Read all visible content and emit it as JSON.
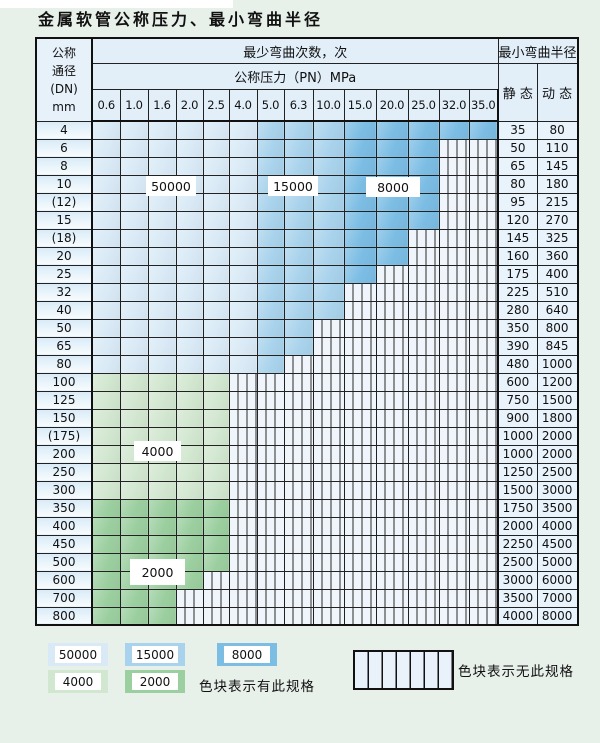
{
  "title": "金属软管公称压力、最小弯曲半径",
  "table": {
    "corner_header": [
      "公称",
      "通径",
      "(DN)",
      "mm"
    ],
    "bend_cycles_header": "最少弯曲次数，次",
    "pressure_header": "公称压力（PN）MPa",
    "radius_header": "最小弯曲半径",
    "static_header": "静 态",
    "dynamic_header": "动 态",
    "pressure_columns": [
      "0.6",
      "1.0",
      "1.6",
      "2.0",
      "2.5",
      "4.0",
      "5.0",
      "6.3",
      "10.0",
      "15.0",
      "20.0",
      "25.0",
      "32.0",
      "35.0"
    ],
    "blue_zones": [
      {
        "value": "50000",
        "cols": [
          "0.6",
          "1.0",
          "1.6",
          "2.0",
          "2.5",
          "4.0"
        ]
      },
      {
        "value": "15000",
        "cols": [
          "5.0",
          "6.3",
          "10.0"
        ]
      },
      {
        "value": "8000",
        "cols": [
          "15.0",
          "20.0",
          "25.0",
          "32.0",
          "35.0"
        ]
      }
    ],
    "rows": [
      {
        "dn": "4",
        "palette": "blue",
        "colored_through": "35.0",
        "static": "35",
        "dynamic": "80"
      },
      {
        "dn": "6",
        "palette": "blue",
        "colored_through": "25.0",
        "static": "50",
        "dynamic": "110"
      },
      {
        "dn": "8",
        "palette": "blue",
        "colored_through": "25.0",
        "static": "65",
        "dynamic": "145"
      },
      {
        "dn": "10",
        "palette": "blue",
        "colored_through": "25.0",
        "static": "80",
        "dynamic": "180"
      },
      {
        "dn": "(12)",
        "palette": "blue",
        "colored_through": "25.0",
        "static": "95",
        "dynamic": "215"
      },
      {
        "dn": "15",
        "palette": "blue",
        "colored_through": "25.0",
        "static": "120",
        "dynamic": "270"
      },
      {
        "dn": "(18)",
        "palette": "blue",
        "colored_through": "20.0",
        "static": "145",
        "dynamic": "325"
      },
      {
        "dn": "20",
        "palette": "blue",
        "colored_through": "20.0",
        "static": "160",
        "dynamic": "360"
      },
      {
        "dn": "25",
        "palette": "blue",
        "colored_through": "15.0",
        "static": "175",
        "dynamic": "400"
      },
      {
        "dn": "32",
        "palette": "blue",
        "colored_through": "10.0",
        "static": "225",
        "dynamic": "510"
      },
      {
        "dn": "40",
        "palette": "blue",
        "colored_through": "10.0",
        "static": "280",
        "dynamic": "640"
      },
      {
        "dn": "50",
        "palette": "blue",
        "colored_through": "6.3",
        "static": "350",
        "dynamic": "800"
      },
      {
        "dn": "65",
        "palette": "blue",
        "colored_through": "6.3",
        "static": "390",
        "dynamic": "845"
      },
      {
        "dn": "80",
        "palette": "blue",
        "colored_through": "5.0",
        "static": "480",
        "dynamic": "1000"
      },
      {
        "dn": "100",
        "palette": "4000",
        "colored_through": "2.5",
        "static": "600",
        "dynamic": "1200"
      },
      {
        "dn": "125",
        "palette": "4000",
        "colored_through": "2.5",
        "static": "750",
        "dynamic": "1500"
      },
      {
        "dn": "150",
        "palette": "4000",
        "colored_through": "2.5",
        "static": "900",
        "dynamic": "1800"
      },
      {
        "dn": "(175)",
        "palette": "4000",
        "colored_through": "2.5",
        "static": "1000",
        "dynamic": "2000"
      },
      {
        "dn": "200",
        "palette": "4000",
        "colored_through": "2.5",
        "static": "1000",
        "dynamic": "2000"
      },
      {
        "dn": "250",
        "palette": "4000",
        "colored_through": "2.5",
        "static": "1250",
        "dynamic": "2500"
      },
      {
        "dn": "300",
        "palette": "4000",
        "colored_through": "2.5",
        "static": "1500",
        "dynamic": "3000"
      },
      {
        "dn": "350",
        "palette": "2000",
        "colored_through": "2.5",
        "static": "1750",
        "dynamic": "3500"
      },
      {
        "dn": "400",
        "palette": "2000",
        "colored_through": "2.5",
        "static": "2000",
        "dynamic": "4000"
      },
      {
        "dn": "450",
        "palette": "2000",
        "colored_through": "2.5",
        "static": "2250",
        "dynamic": "4500"
      },
      {
        "dn": "500",
        "palette": "2000",
        "colored_through": "2.5",
        "static": "2500",
        "dynamic": "5000"
      },
      {
        "dn": "600",
        "palette": "2000",
        "colored_through": "2.0",
        "static": "3000",
        "dynamic": "6000"
      },
      {
        "dn": "700",
        "palette": "2000",
        "colored_through": "1.6",
        "static": "3500",
        "dynamic": "7000"
      },
      {
        "dn": "800",
        "palette": "2000",
        "colored_through": "1.6",
        "static": "4000",
        "dynamic": "8000"
      }
    ]
  },
  "overlay_labels": [
    {
      "text": "50000"
    },
    {
      "text": "15000"
    },
    {
      "text": "8000"
    },
    {
      "text": "4000"
    },
    {
      "text": "2000"
    }
  ],
  "legend": {
    "items": [
      {
        "value": "50000"
      },
      {
        "value": "15000"
      },
      {
        "value": "8000"
      },
      {
        "value": "4000"
      },
      {
        "value": "2000"
      }
    ],
    "has_spec_text": "色块表示有此规格",
    "no_spec_text": "色块表示无此规格"
  },
  "colors": {
    "50000": "#d9eaf6",
    "15000": "#a9d3ec",
    "8000": "#7cbde4",
    "4000": "#d2e7d0",
    "2000": "#9ccfa0",
    "hatch_bg": "#eff5fb",
    "header_bg": "#e2eff9",
    "page_bg": "#e8f0ea"
  }
}
